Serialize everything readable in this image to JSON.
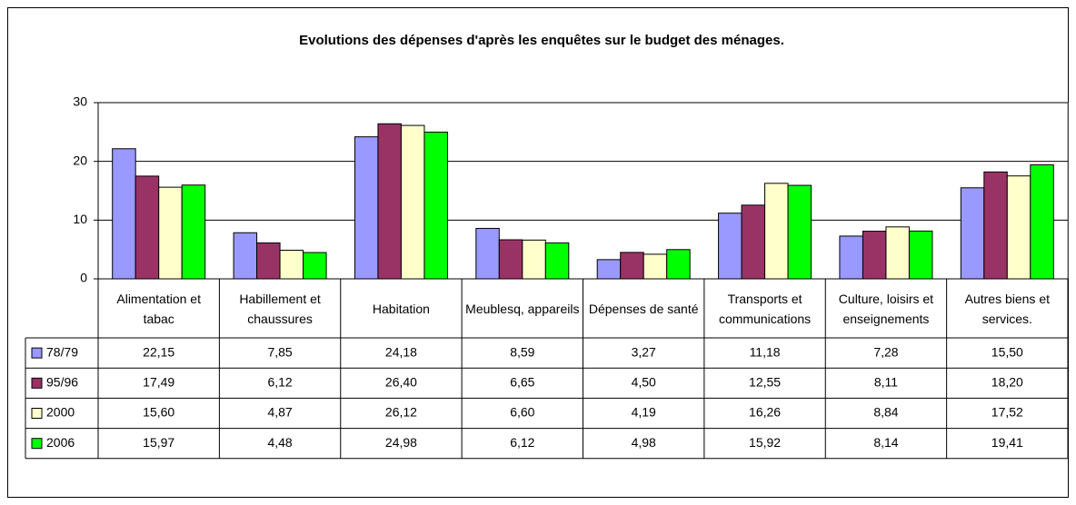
{
  "chart_data": {
    "type": "bar",
    "title": "Evolutions des dépenses d'après les enquêtes sur le budget des ménages.",
    "categories": [
      "Alimentation et tabac",
      "Habillement et chaussures",
      "Habitation",
      "Meublesq, appareils",
      "Dépenses de santé",
      "Transports et communications",
      "Culture, loisirs et enseignements",
      "Autres biens et services."
    ],
    "series": [
      {
        "name": "78/79",
        "color": "#9999ff",
        "values": [
          22.15,
          7.85,
          24.18,
          8.59,
          3.27,
          11.18,
          7.28,
          15.5
        ],
        "value_labels": [
          "22,15",
          "7,85",
          "24,18",
          "8,59",
          "3,27",
          "11,18",
          "7,28",
          "15,50"
        ]
      },
      {
        "name": "95/96",
        "color": "#993366",
        "values": [
          17.49,
          6.12,
          26.4,
          6.65,
          4.5,
          12.55,
          8.11,
          18.2
        ],
        "value_labels": [
          "17,49",
          "6,12",
          "26,40",
          "6,65",
          "4,50",
          "12,55",
          "8,11",
          "18,20"
        ]
      },
      {
        "name": "2000",
        "color": "#ffffcc",
        "values": [
          15.6,
          4.87,
          26.12,
          6.6,
          4.19,
          16.26,
          8.84,
          17.52
        ],
        "value_labels": [
          "15,60",
          "4,87",
          "26,12",
          "6,60",
          "4,19",
          "16,26",
          "8,84",
          "17,52"
        ]
      },
      {
        "name": "2006",
        "color": "#00ff00",
        "values": [
          15.97,
          4.48,
          24.98,
          6.12,
          4.98,
          15.92,
          8.14,
          19.41
        ],
        "value_labels": [
          "15,97",
          "4,48",
          "24,98",
          "6,12",
          "4,98",
          "15,92",
          "8,14",
          "19,41"
        ]
      }
    ],
    "ylim": [
      0,
      30
    ],
    "yticks": [
      0,
      10,
      20,
      30
    ],
    "grid": true
  }
}
